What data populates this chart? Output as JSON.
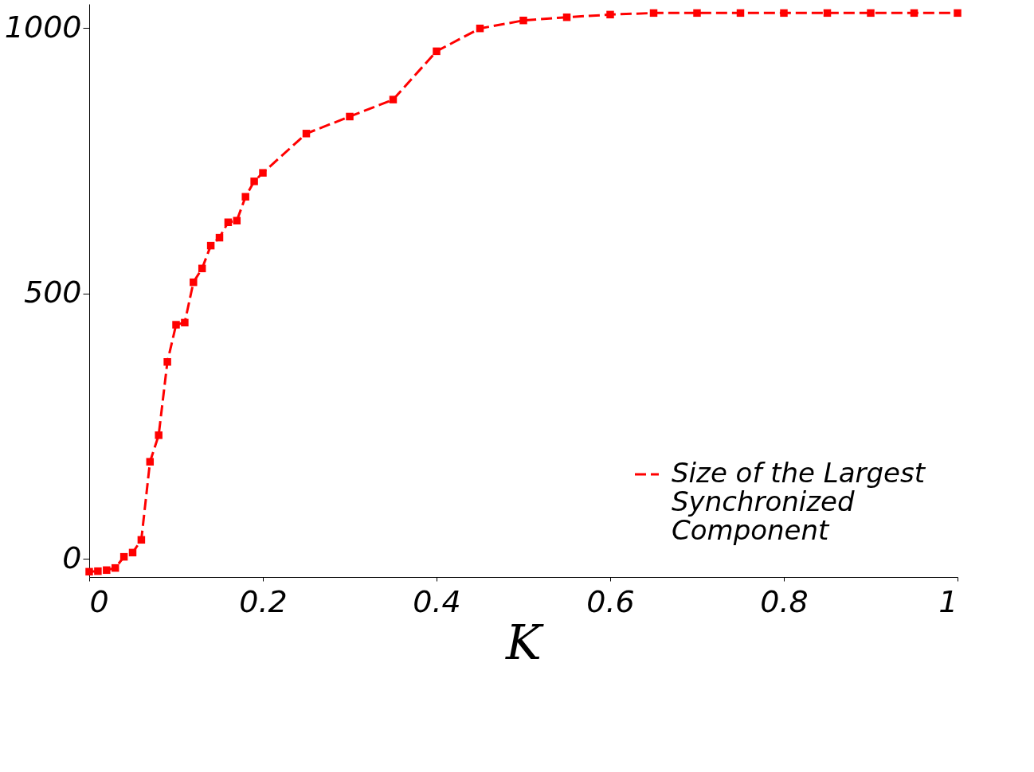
{
  "chart_data": {
    "type": "line",
    "xlabel": "K",
    "x": [
      0,
      0.01,
      0.02,
      0.03,
      0.04,
      0.05,
      0.06,
      0.07,
      0.08,
      0.09,
      0.1,
      0.11,
      0.12,
      0.13,
      0.14,
      0.15,
      0.16,
      0.17,
      0.18,
      0.19,
      0.2,
      0.25,
      0.3,
      0.35,
      0.4,
      0.45,
      0.5,
      0.55,
      0.6,
      0.65,
      0.7,
      0.75,
      0.8,
      0.85,
      0.9,
      0.95,
      1
    ],
    "series": [
      {
        "name": "Size of the Largest Synchronized Component",
        "color": "#ff0000",
        "values": [
          -24,
          -23,
          -21,
          -17,
          4,
          12,
          36,
          183,
          233,
          371,
          441,
          445,
          521,
          547,
          590,
          605,
          634,
          637,
          682,
          711,
          727,
          801,
          833,
          865,
          956,
          999,
          1014,
          1020,
          1025,
          1028,
          1028,
          1028,
          1028,
          1028,
          1028,
          1028,
          1028
        ]
      }
    ],
    "xlim": [
      0,
      1
    ],
    "ylim": [
      -34,
      1045
    ],
    "xticks": [
      0,
      0.2,
      0.4,
      0.6,
      0.8,
      1
    ],
    "yticks": [
      0,
      500,
      1000
    ],
    "grid": false,
    "legend": "bottom right",
    "marker": "square",
    "line_style": "dashed"
  }
}
